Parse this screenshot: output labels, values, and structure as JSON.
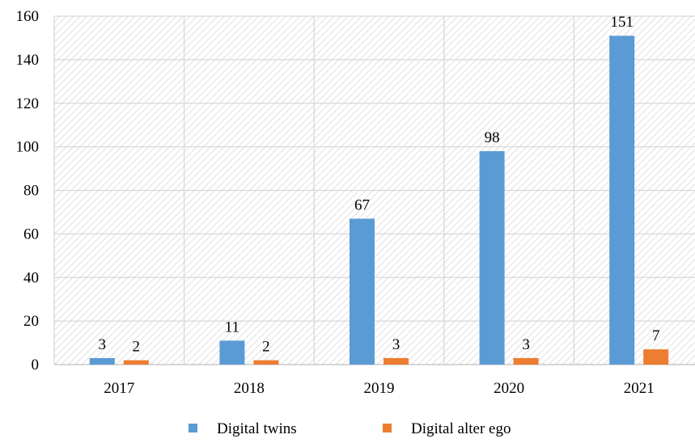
{
  "chart_data": {
    "type": "bar",
    "categories": [
      "2017",
      "2018",
      "2019",
      "2020",
      "2021"
    ],
    "series": [
      {
        "name": "Digital twins",
        "values": [
          3,
          11,
          67,
          98,
          151
        ],
        "color": "#5b9bd5"
      },
      {
        "name": "Digital alter ego",
        "values": [
          2,
          2,
          3,
          3,
          7
        ],
        "color": "#ed7d31"
      }
    ],
    "y_ticks": [
      "0",
      "20",
      "40",
      "60",
      "80",
      "100",
      "120",
      "140",
      "160"
    ],
    "ylim": [
      0,
      160
    ],
    "xlabel": "",
    "ylabel": "",
    "grid": true,
    "background_pattern": "diagonal-hatch",
    "legend_position": "bottom"
  }
}
